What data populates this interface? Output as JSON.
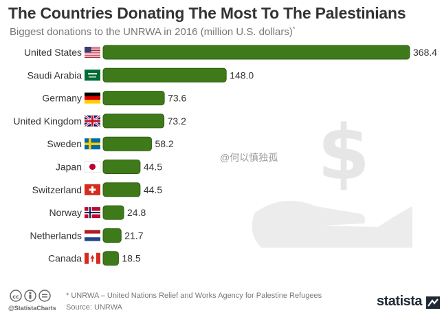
{
  "header": {
    "title": "The Countries Donating The Most To The Palestinians",
    "subtitle": "Biggest donations to the UNRWA in 2016 (million U.S. dollars)",
    "subtitle_marker": "*"
  },
  "watermark": "@何以慎独孤",
  "footer": {
    "footnote": "* UNRWA – United Nations Relief and Works Agency for Palestine Refugees",
    "source": "Source: UNRWA",
    "handle": "@StatistaCharts",
    "brand": "statista"
  },
  "colors": {
    "bar": "#3f7a1a",
    "bar_dark": "#2f5f12",
    "text": "#333333",
    "muted": "#777777"
  },
  "chart_data": {
    "type": "bar",
    "orientation": "horizontal",
    "categories": [
      "United States",
      "Saudi Arabia",
      "Germany",
      "United Kingdom",
      "Sweden",
      "Japan",
      "Switzerland",
      "Norway",
      "Netherlands",
      "Canada"
    ],
    "values": [
      368.4,
      148.0,
      73.6,
      73.2,
      58.2,
      44.5,
      44.5,
      24.8,
      21.7,
      18.5
    ],
    "value_labels": [
      "368.4",
      "148.0",
      "73.6",
      "73.2",
      "58.2",
      "44.5",
      "44.5",
      "24.8",
      "21.7",
      "18.5"
    ],
    "flags": [
      "us-flag",
      "saudi-flag",
      "germany-flag",
      "uk-flag",
      "sweden-flag",
      "japan-flag",
      "switzerland-flag",
      "norway-flag",
      "netherlands-flag",
      "canada-flag"
    ],
    "title": "The Countries Donating The Most To The Palestinians",
    "xlabel": "",
    "ylabel": "",
    "xlim": [
      0,
      368.4
    ],
    "grid": false
  }
}
